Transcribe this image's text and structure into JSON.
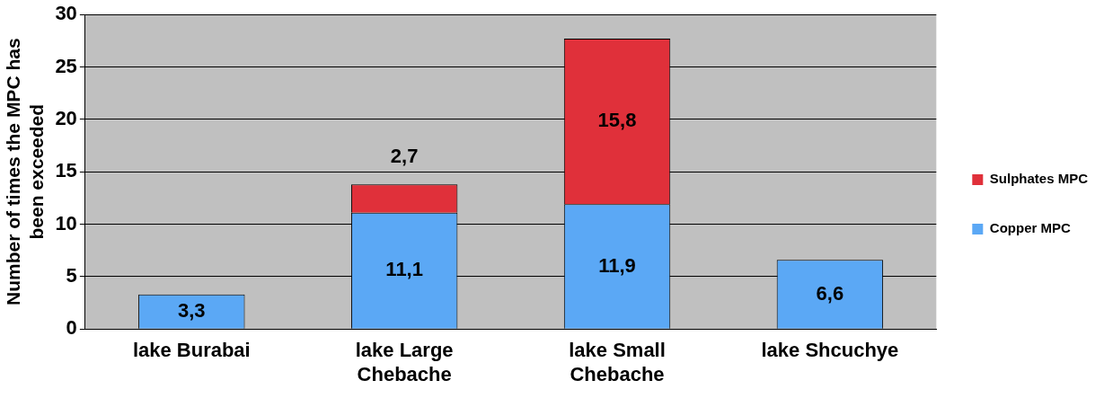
{
  "chart_data": {
    "type": "bar",
    "ylabel": "Number of times the MPC has been exceeded",
    "categories": [
      "lake Burabai",
      "lake Large Chebache",
      "lake Small Chebache",
      "lake Shcuchye"
    ],
    "series": [
      {
        "name": "Copper MPC",
        "color": "#5ba8f5",
        "values": [
          3.3,
          11.1,
          11.9,
          6.6
        ],
        "value_labels": [
          "3,3",
          "11,1",
          "11,9",
          "6,6"
        ]
      },
      {
        "name": "Sulphates MPC",
        "color": "#e0303a",
        "values": [
          null,
          2.7,
          15.8,
          null
        ],
        "value_labels": [
          null,
          "2,7",
          "15,8",
          null
        ]
      }
    ],
    "stacked": true,
    "ylim": [
      0,
      30
    ],
    "yticks": [
      0,
      5,
      10,
      15,
      20,
      25,
      30
    ],
    "grid": "y",
    "legend": "right"
  }
}
